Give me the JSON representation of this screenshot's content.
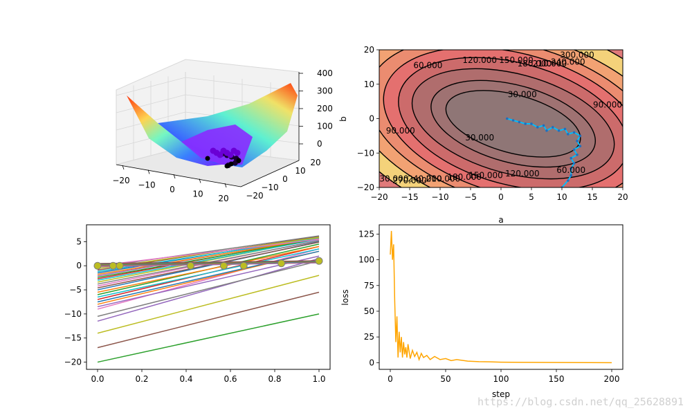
{
  "watermark": "https://blog.csdn.net/qq_25628891",
  "colors": {
    "loss_line": "#ffa500",
    "path_line": "#00bfff",
    "points": "#bcbd22"
  },
  "chart_data": [
    {
      "type": "surface3d",
      "xlabel": "",
      "ylabel": "",
      "zlabel": "",
      "x_ticks": [
        "−20",
        "−10",
        "0",
        "10",
        "20"
      ],
      "y_ticks": [
        "−20",
        "−10",
        "0",
        "10",
        "20"
      ],
      "z_ticks": [
        "0",
        "100",
        "200",
        "300",
        "400"
      ],
      "xlim": [
        -20,
        20
      ],
      "ylim": [
        -20,
        20
      ],
      "zlim": [
        0,
        420
      ],
      "colormap": "rainbow",
      "scatter_points": [
        {
          "x": 10,
          "y": -20,
          "z": 0
        },
        {
          "x": 12,
          "y": -10,
          "z": 0
        },
        {
          "x": 13,
          "y": -6,
          "z": 10
        },
        {
          "x": 11,
          "y": -2,
          "z": 15
        },
        {
          "x": 8,
          "y": -1,
          "z": 20
        },
        {
          "x": 5,
          "y": 0,
          "z": 25
        },
        {
          "x": 2,
          "y": 0,
          "z": 30
        }
      ]
    },
    {
      "type": "contour",
      "xlabel": "a",
      "ylabel": "b",
      "xlim": [
        -20,
        20
      ],
      "ylim": [
        -20,
        20
      ],
      "x_ticks": [
        "−20",
        "−15",
        "−10",
        "−5",
        "0",
        "5",
        "10",
        "15",
        "20"
      ],
      "y_ticks": [
        "20",
        "10",
        "0",
        "−10",
        "−20"
      ],
      "level_labels": [
        {
          "text": "300.000",
          "a": 12.5,
          "b": 18.5
        },
        {
          "text": "240.000",
          "a": 11,
          "b": 16.5
        },
        {
          "text": "210.000",
          "a": 8,
          "b": 16
        },
        {
          "text": "180.000",
          "a": 5.5,
          "b": 16
        },
        {
          "text": "150.000",
          "a": 2.5,
          "b": 17
        },
        {
          "text": "120.000",
          "a": -3.5,
          "b": 17
        },
        {
          "text": "60.000",
          "a": -12,
          "b": 15.5
        },
        {
          "text": "30.000",
          "a": 3.5,
          "b": 7
        },
        {
          "text": "90.000",
          "a": 17.5,
          "b": 4
        },
        {
          "text": "90.000",
          "a": -16.5,
          "b": -3.5
        },
        {
          "text": "30.000",
          "a": -3.5,
          "b": -5.5
        },
        {
          "text": "60.000",
          "a": 11.5,
          "b": -15
        },
        {
          "text": "120.000",
          "a": 3.5,
          "b": -16
        },
        {
          "text": "150.000",
          "a": -2.5,
          "b": -16.5
        },
        {
          "text": "180.000",
          "a": -6,
          "b": -17
        },
        {
          "text": "210.000",
          "a": -9.5,
          "b": -17.5
        },
        {
          "text": "240.000",
          "a": -12.5,
          "b": -17.5
        },
        {
          "text": "270.000",
          "a": -15,
          "b": -18
        },
        {
          "text": "330.000",
          "a": -18,
          "b": -17.5
        }
      ],
      "path": [
        [
          10.0,
          -20.0
        ],
        [
          11.0,
          -18.0
        ],
        [
          11.5,
          -16.5
        ],
        [
          11.5,
          -14.5
        ],
        [
          12.0,
          -13.0
        ],
        [
          11.5,
          -11.5
        ],
        [
          12.5,
          -10.5
        ],
        [
          12.0,
          -9.0
        ],
        [
          13.0,
          -8.0
        ],
        [
          12.5,
          -6.5
        ],
        [
          13.0,
          -5.0
        ],
        [
          12.0,
          -4.0
        ],
        [
          11.0,
          -4.5
        ],
        [
          10.5,
          -3.0
        ],
        [
          9.5,
          -3.5
        ],
        [
          8.5,
          -2.5
        ],
        [
          7.5,
          -3.5
        ],
        [
          7.0,
          -2.0
        ],
        [
          6.0,
          -2.5
        ],
        [
          5.0,
          -1.5
        ],
        [
          4.0,
          -1.5
        ],
        [
          3.0,
          -1.0
        ],
        [
          2.0,
          -0.5
        ],
        [
          1.0,
          0.0
        ]
      ]
    },
    {
      "type": "line",
      "xlim": [
        -0.05,
        1.05
      ],
      "ylim": [
        -21.5,
        8.5
      ],
      "x_ticks": [
        "0.0",
        "0.2",
        "0.4",
        "0.6",
        "0.8",
        "1.0"
      ],
      "y_ticks": [
        "5",
        "0",
        "−5",
        "−10",
        "−15",
        "−20"
      ],
      "line_start_b": [
        -20,
        -17,
        -14,
        -11.5,
        -10.5,
        -9,
        -8.5,
        -8,
        -7.5,
        -7,
        -6.5,
        -6,
        -5.5,
        -5,
        -4.6,
        -4.2,
        -3.8,
        -3.4,
        -3,
        -2.7,
        -2.4,
        -2.1,
        -1.8,
        -1.5,
        -1.2,
        -0.9,
        -0.6,
        -0.3,
        0
      ],
      "line_colors": [
        "#2ca02c",
        "#8c564b",
        "#bcbd22",
        "#9467bd",
        "#7f7f7f",
        "#e377c2",
        "#9467bd",
        "#ff7f0e",
        "#1f77b4",
        "#d62728",
        "#17becf",
        "#2ca02c",
        "#ff7f0e",
        "#1f77b4",
        "#8c564b",
        "#e377c2",
        "#7f7f7f",
        "#bcbd22",
        "#17becf",
        "#d62728",
        "#2ca02c",
        "#9467bd",
        "#ff7f0e",
        "#1f77b4",
        "#17becf",
        "#8c564b",
        "#bcbd22",
        "#7f7f7f",
        "#e377c2"
      ],
      "slopes": [
        10,
        11.5,
        12,
        13,
        11.5,
        12.5,
        10.5,
        11,
        10.5,
        11,
        10,
        10.5,
        9.5,
        10,
        9.5,
        9.5,
        9,
        9,
        8.5,
        8.5,
        8,
        8,
        7.5,
        7.5,
        7,
        7,
        6.5,
        6.5,
        5.5
      ],
      "points": [
        {
          "x": 0.0,
          "y": 0
        },
        {
          "x": 0.07,
          "y": 0
        },
        {
          "x": 0.1,
          "y": 0
        },
        {
          "x": 0.42,
          "y": 0
        },
        {
          "x": 0.57,
          "y": 0
        },
        {
          "x": 0.66,
          "y": 0
        },
        {
          "x": 0.83,
          "y": 0.5
        },
        {
          "x": 1.0,
          "y": 1
        }
      ]
    },
    {
      "type": "line",
      "xlabel": "step",
      "ylabel": "loss",
      "xlim": [
        -10,
        210
      ],
      "ylim": [
        -6.5,
        134
      ],
      "x_ticks": [
        "0",
        "50",
        "100",
        "150",
        "200"
      ],
      "y_ticks": [
        "125",
        "100",
        "75",
        "50",
        "25",
        "0"
      ],
      "series": [
        {
          "color": "#ffa500",
          "x": [
            0,
            1,
            2,
            3,
            4,
            5,
            6,
            7,
            8,
            9,
            10,
            11,
            12,
            13,
            14,
            15,
            16,
            18,
            20,
            22,
            24,
            26,
            28,
            30,
            33,
            36,
            40,
            45,
            50,
            55,
            60,
            70,
            80,
            90,
            100,
            110,
            120,
            140,
            160,
            180,
            200
          ],
          "y": [
            105,
            128,
            100,
            115,
            60,
            20,
            45,
            5,
            30,
            10,
            25,
            5,
            20,
            8,
            15,
            5,
            18,
            4,
            12,
            6,
            10,
            3,
            9,
            5,
            7,
            3,
            6,
            3,
            4,
            2,
            3,
            1.5,
            1,
            0.8,
            0.5,
            0.4,
            0.3,
            0.2,
            0.1,
            0.05,
            0
          ]
        }
      ]
    }
  ]
}
